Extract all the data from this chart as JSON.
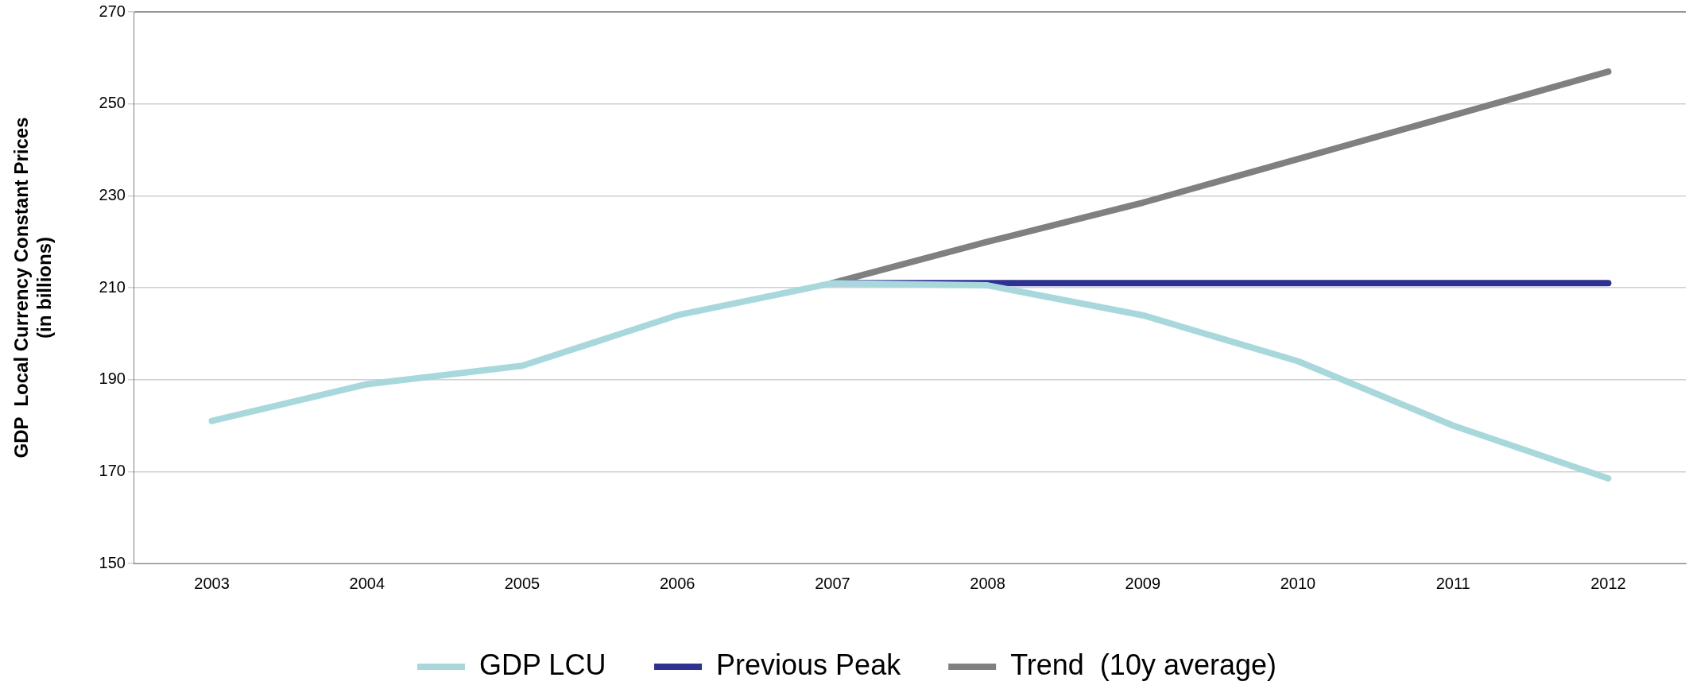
{
  "chart_data": {
    "type": "line",
    "ylabel": "GDP  Local Currency Constant Prices\n(in billions)",
    "categories": [
      "2003",
      "2004",
      "2005",
      "2006",
      "2007",
      "2008",
      "2009",
      "2010",
      "2011",
      "2012"
    ],
    "series": [
      {
        "name": "GDP LCU",
        "color": "#a8d8dc",
        "values": [
          181,
          189,
          193,
          204,
          211,
          210.5,
          204,
          194,
          180,
          168.5
        ]
      },
      {
        "name": "Previous Peak",
        "color": "#2e3192",
        "values": [
          null,
          null,
          null,
          null,
          211,
          211,
          211,
          211,
          211,
          211
        ]
      },
      {
        "name": "Trend  (10y average)",
        "color": "#808080",
        "values": [
          null,
          null,
          null,
          null,
          211,
          220,
          228.5,
          238,
          247.5,
          257
        ]
      }
    ],
    "ylim": [
      150,
      270
    ],
    "yticks": [
      150,
      170,
      190,
      210,
      230,
      250,
      270
    ],
    "grid": "y",
    "legend": "bottom",
    "marker": "none",
    "line_style": "solid"
  }
}
